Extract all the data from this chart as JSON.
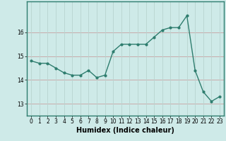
{
  "x": [
    0,
    1,
    2,
    3,
    4,
    5,
    6,
    7,
    8,
    9,
    10,
    11,
    12,
    13,
    14,
    15,
    16,
    17,
    18,
    19,
    20,
    21,
    22,
    23
  ],
  "y": [
    14.8,
    14.7,
    14.7,
    14.5,
    14.3,
    14.2,
    14.2,
    14.4,
    14.1,
    14.2,
    15.2,
    15.5,
    15.5,
    15.5,
    15.5,
    15.8,
    16.1,
    16.2,
    16.2,
    16.7,
    14.4,
    13.5,
    13.1,
    13.3
  ],
  "line_color": "#2e7d6e",
  "marker": "o",
  "markersize": 2.0,
  "linewidth": 1.0,
  "bg_color": "#ceeae8",
  "grid_color_h": "#c8a0a0",
  "grid_color_v": "#b8d4d0",
  "xlabel": "Humidex (Indice chaleur)",
  "ylim": [
    12.5,
    17.3
  ],
  "xlim": [
    -0.5,
    23.5
  ],
  "yticks": [
    13,
    14,
    15,
    16
  ],
  "xticks": [
    0,
    1,
    2,
    3,
    4,
    5,
    6,
    7,
    8,
    9,
    10,
    11,
    12,
    13,
    14,
    15,
    16,
    17,
    18,
    19,
    20,
    21,
    22,
    23
  ],
  "tick_fontsize": 5.5,
  "xlabel_fontsize": 7,
  "axes_color": "#2e7d6e",
  "spine_color": "#2e7d6e"
}
